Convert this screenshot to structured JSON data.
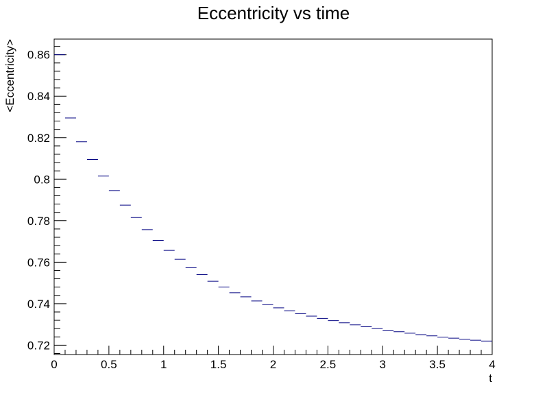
{
  "chart_data": {
    "type": "scatter",
    "title": "Eccentricity vs time",
    "xlabel": "t",
    "ylabel": "<Eccentricity>",
    "xlim": [
      0,
      4
    ],
    "ylim": [
      0.7155,
      0.8675
    ],
    "x_ticks": [
      "0",
      "0.5",
      "1",
      "1.5",
      "2",
      "2.5",
      "3",
      "3.5",
      "4"
    ],
    "y_ticks": [
      "0.72",
      "0.74",
      "0.76",
      "0.78",
      "0.8",
      "0.82",
      "0.84",
      "0.86"
    ],
    "grid": false,
    "legend": "none",
    "marker_color": "#000080",
    "bin_width": 0.1,
    "series": [
      {
        "x": [
          0.05,
          0.15,
          0.25,
          0.35,
          0.45,
          0.55,
          0.65,
          0.75,
          0.85,
          0.95,
          1.05,
          1.15,
          1.25,
          1.35,
          1.45,
          1.55,
          1.65,
          1.75,
          1.85,
          1.95,
          2.05,
          2.15,
          2.25,
          2.35,
          2.45,
          2.55,
          2.65,
          2.75,
          2.85,
          2.95,
          3.05,
          3.15,
          3.25,
          3.35,
          3.45,
          3.55,
          3.65,
          3.75,
          3.85,
          3.95
        ],
        "values": [
          0.86,
          0.8295,
          0.818,
          0.8095,
          0.8015,
          0.7945,
          0.7875,
          0.7815,
          0.7757,
          0.7705,
          0.7657,
          0.7614,
          0.7573,
          0.754,
          0.7508,
          0.748,
          0.7453,
          0.7433,
          0.7413,
          0.7395,
          0.738,
          0.7366,
          0.7352,
          0.734,
          0.7329,
          0.7318,
          0.7308,
          0.7298,
          0.7289,
          0.728,
          0.7272,
          0.7265,
          0.7258,
          0.7251,
          0.7245,
          0.7239,
          0.7234,
          0.7229,
          0.7224,
          0.722
        ]
      }
    ]
  }
}
